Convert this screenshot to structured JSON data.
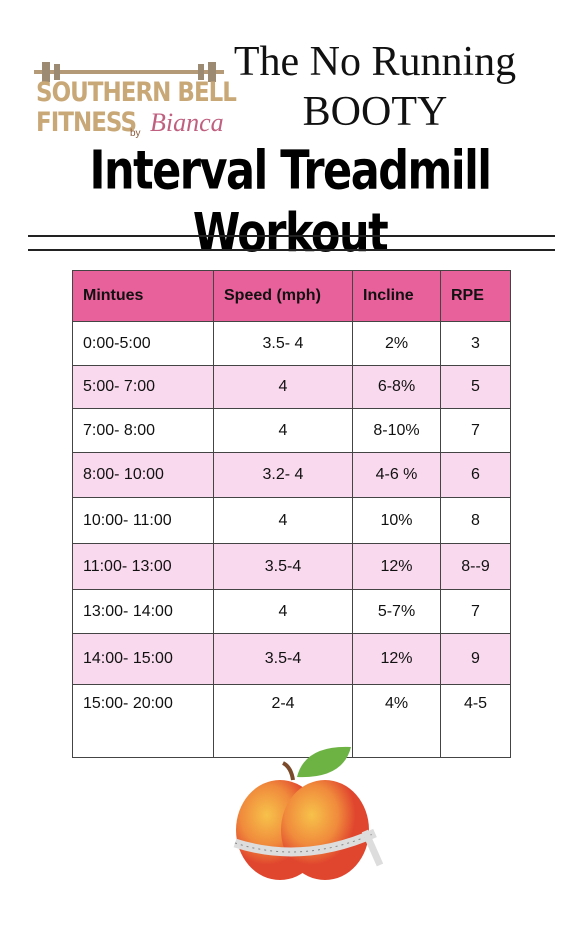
{
  "logo": {
    "line1": "SOUTHERN BELL",
    "line2": "FITNESS",
    "by": "by",
    "name": "Bianca"
  },
  "title": {
    "line1": "The No Running",
    "line2": "BOOTY",
    "main": "Interval Treadmill Workout"
  },
  "table": {
    "header": [
      "Mintues",
      "Speed (mph)",
      "Incline",
      "RPE"
    ],
    "rows": [
      [
        "0:00-5:00",
        "3.5- 4",
        "2%",
        "3"
      ],
      [
        "5:00- 7:00",
        "4",
        "6-8%",
        "5"
      ],
      [
        "7:00- 8:00",
        "4",
        "8-10%",
        "7"
      ],
      [
        "8:00- 10:00",
        "3.2- 4",
        "4-6 %",
        "6"
      ],
      [
        "10:00- 11:00",
        "4",
        "10%",
        "8"
      ],
      [
        "11:00- 13:00",
        "3.5-4",
        "12%",
        "8--9"
      ],
      [
        "13:00- 14:00",
        "4",
        "5-7%",
        "7"
      ],
      [
        "14:00- 15:00",
        "3.5-4",
        "12%",
        "9"
      ],
      [
        "15:00- 20:00",
        "2-4",
        "4%",
        "4-5"
      ]
    ]
  }
}
